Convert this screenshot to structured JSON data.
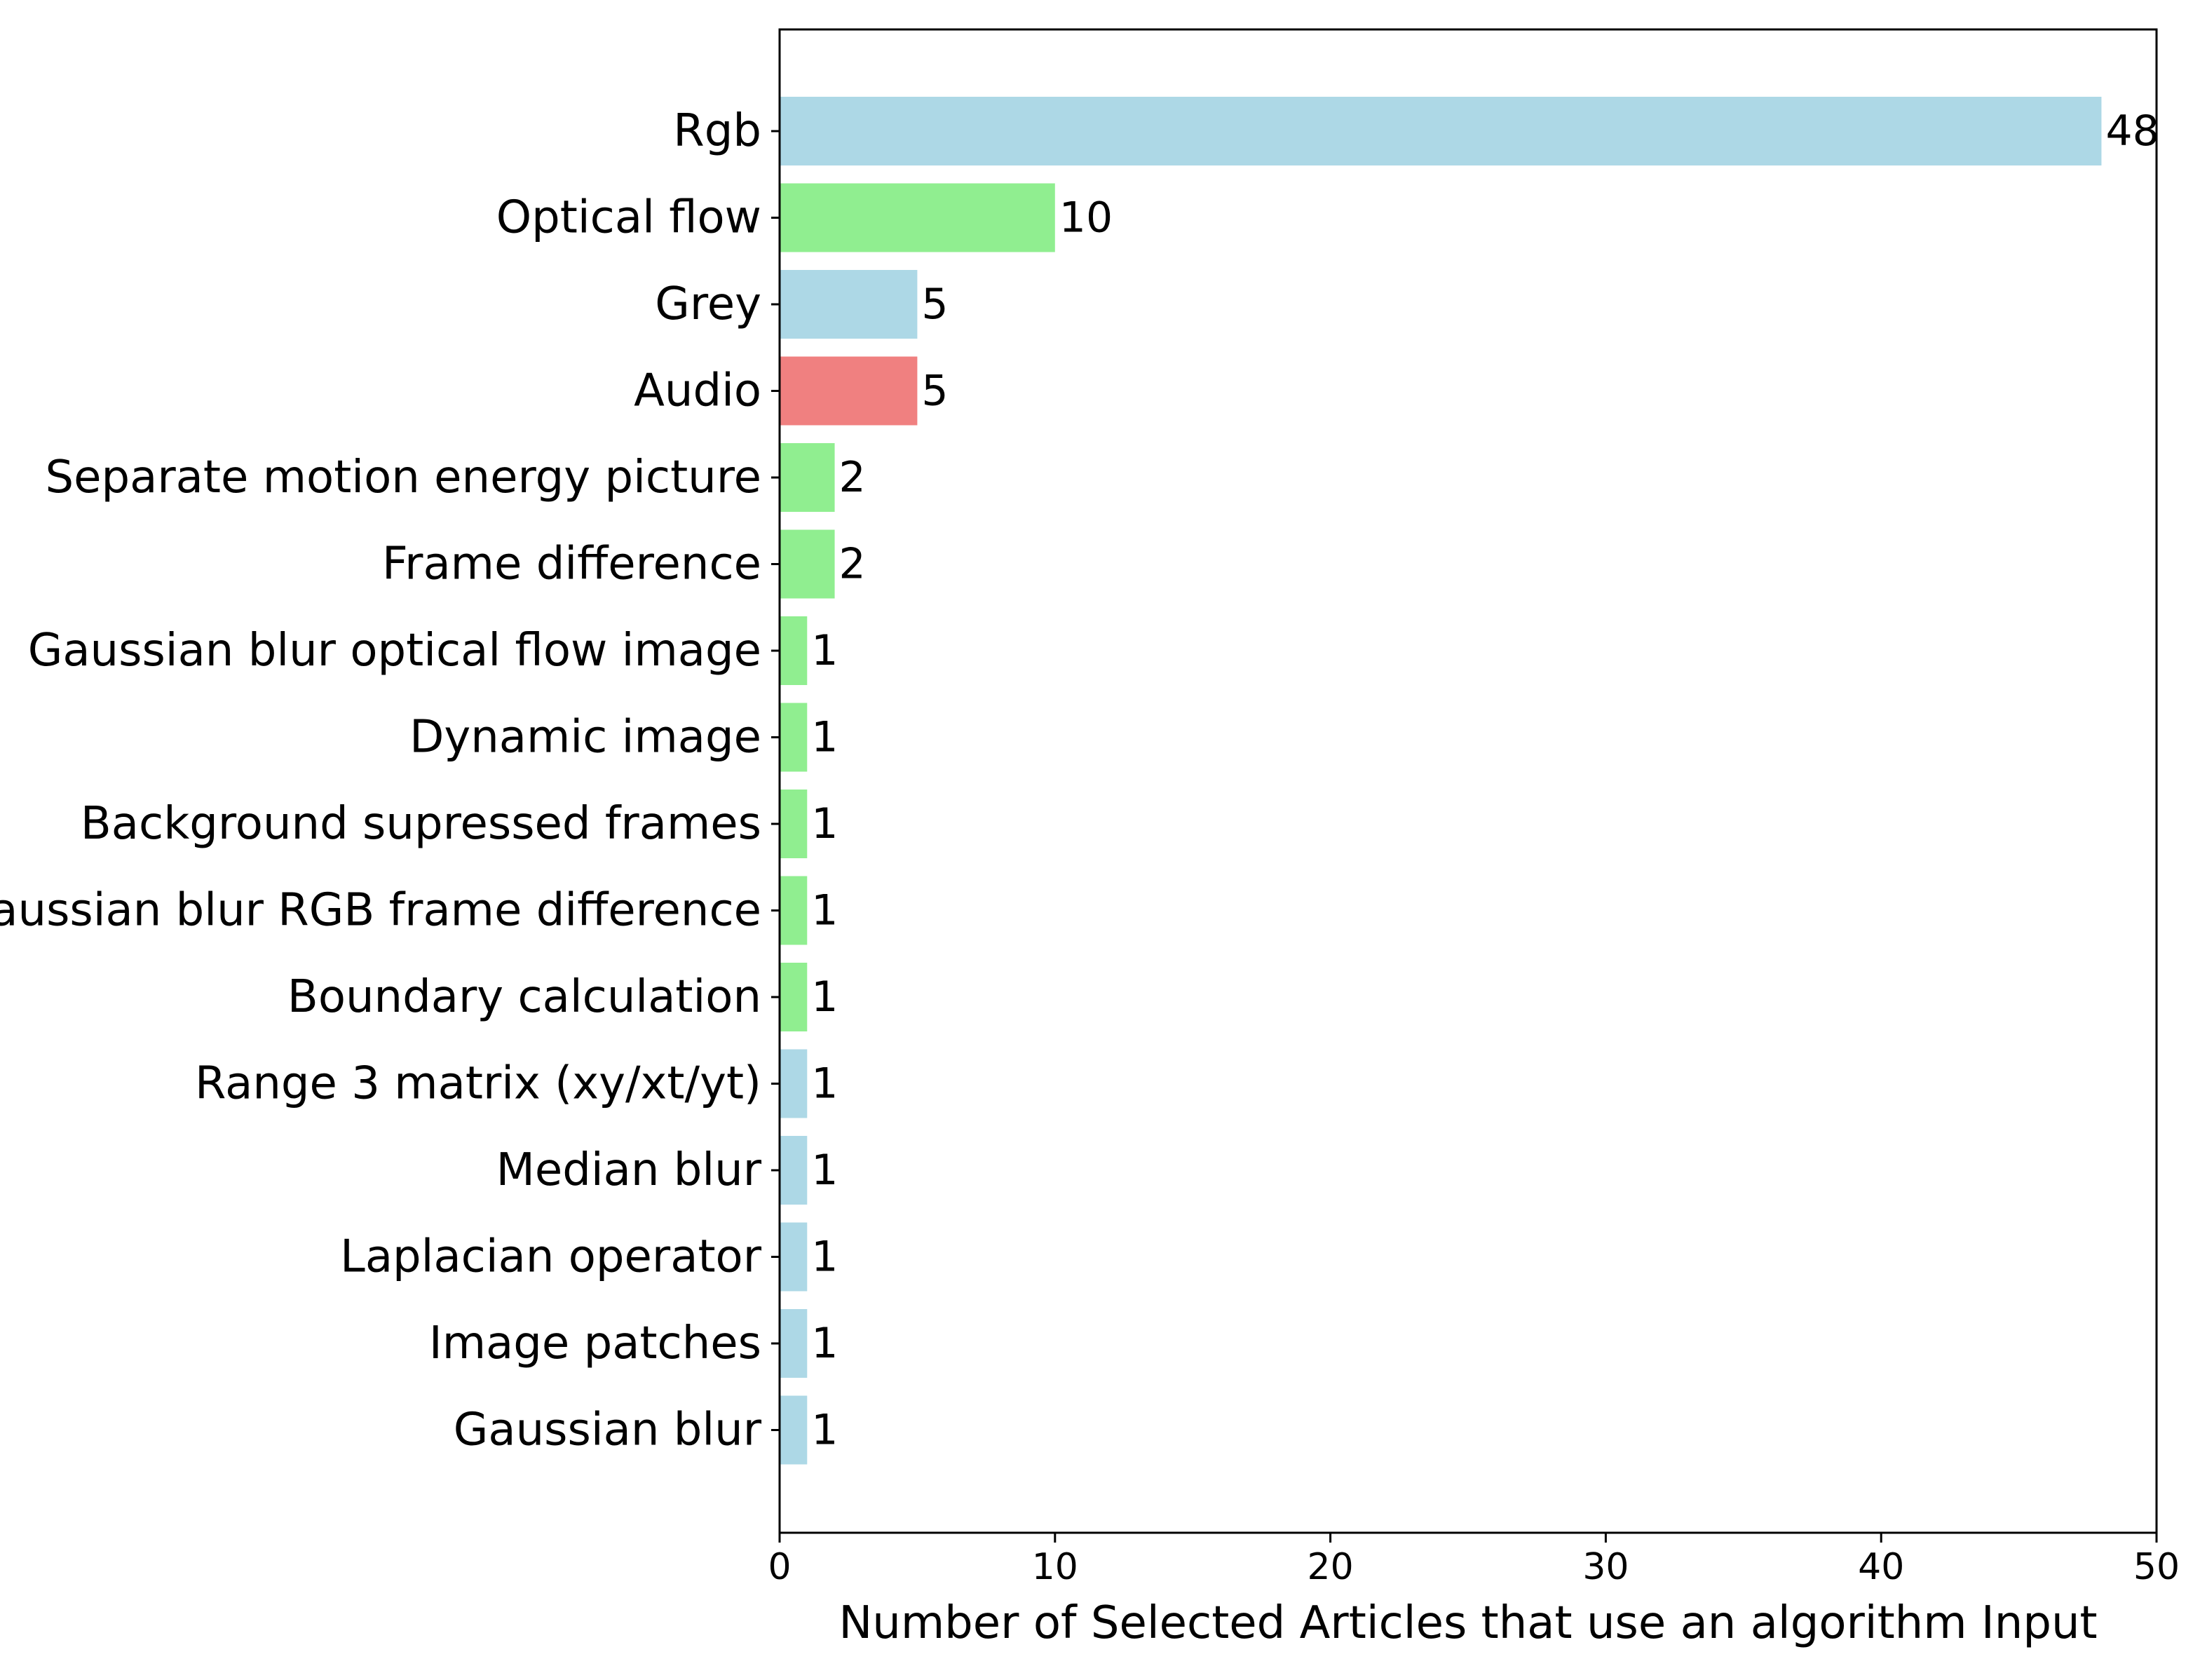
{
  "chart_data": {
    "type": "bar",
    "orientation": "horizontal",
    "title": "",
    "xlabel": "Number of Selected Articles that use an algorithm Input",
    "ylabel": "",
    "xlim": [
      0,
      50
    ],
    "xticks": [
      0,
      10,
      20,
      30,
      40,
      50
    ],
    "grid": false,
    "categories": [
      "Rgb",
      "Optical flow",
      "Grey",
      "Audio",
      "Separate motion energy picture",
      "Frame difference",
      "Gaussian blur optical flow image",
      "Dynamic image",
      "Background supressed frames",
      "Gaussian blur RGB frame difference",
      "Boundary calculation",
      "Range 3 matrix (xy/xt/yt)",
      "Median blur",
      "Laplacian operator",
      "Image patches",
      "Gaussian blur"
    ],
    "values": [
      48,
      10,
      5,
      5,
      2,
      2,
      1,
      1,
      1,
      1,
      1,
      1,
      1,
      1,
      1,
      1
    ],
    "value_labels": [
      "48",
      "10",
      "5",
      "5",
      "2",
      "2",
      "1",
      "1",
      "1",
      "1",
      "1",
      "1",
      "1",
      "1",
      "1",
      "1"
    ],
    "bar_colors": [
      "#add8e6",
      "#90ee90",
      "#add8e6",
      "#f08080",
      "#90ee90",
      "#90ee90",
      "#90ee90",
      "#90ee90",
      "#90ee90",
      "#90ee90",
      "#90ee90",
      "#add8e6",
      "#add8e6",
      "#add8e6",
      "#add8e6",
      "#add8e6"
    ]
  }
}
